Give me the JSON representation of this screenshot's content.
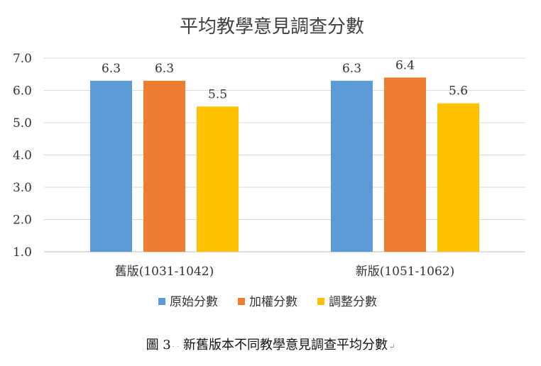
{
  "chart_data": {
    "type": "bar",
    "title": "平均教學意見調查分數",
    "categories": [
      "舊版(1031-1042)",
      "新版(1051-1062)"
    ],
    "series": [
      {
        "name": "原始分數",
        "color": "#5B9BD5",
        "values": [
          6.3,
          6.3
        ],
        "labels": [
          "6.3",
          "6.3"
        ]
      },
      {
        "name": "加權分數",
        "color": "#ED7D31",
        "values": [
          6.3,
          6.4
        ],
        "labels": [
          "6.3",
          "6.4"
        ]
      },
      {
        "name": "調整分數",
        "color": "#FFC000",
        "values": [
          5.5,
          5.6
        ],
        "labels": [
          "5.5",
          "5.6"
        ]
      }
    ],
    "ylim": [
      1.0,
      7.0
    ],
    "yticks": [
      "1.0",
      "2.0",
      "3.0",
      "4.0",
      "5.0",
      "6.0",
      "7.0"
    ],
    "grid": true,
    "legend": "bottom"
  },
  "caption": {
    "text": "圖 3",
    "rest": "新舊版本不同教學意見調查平均分數"
  }
}
